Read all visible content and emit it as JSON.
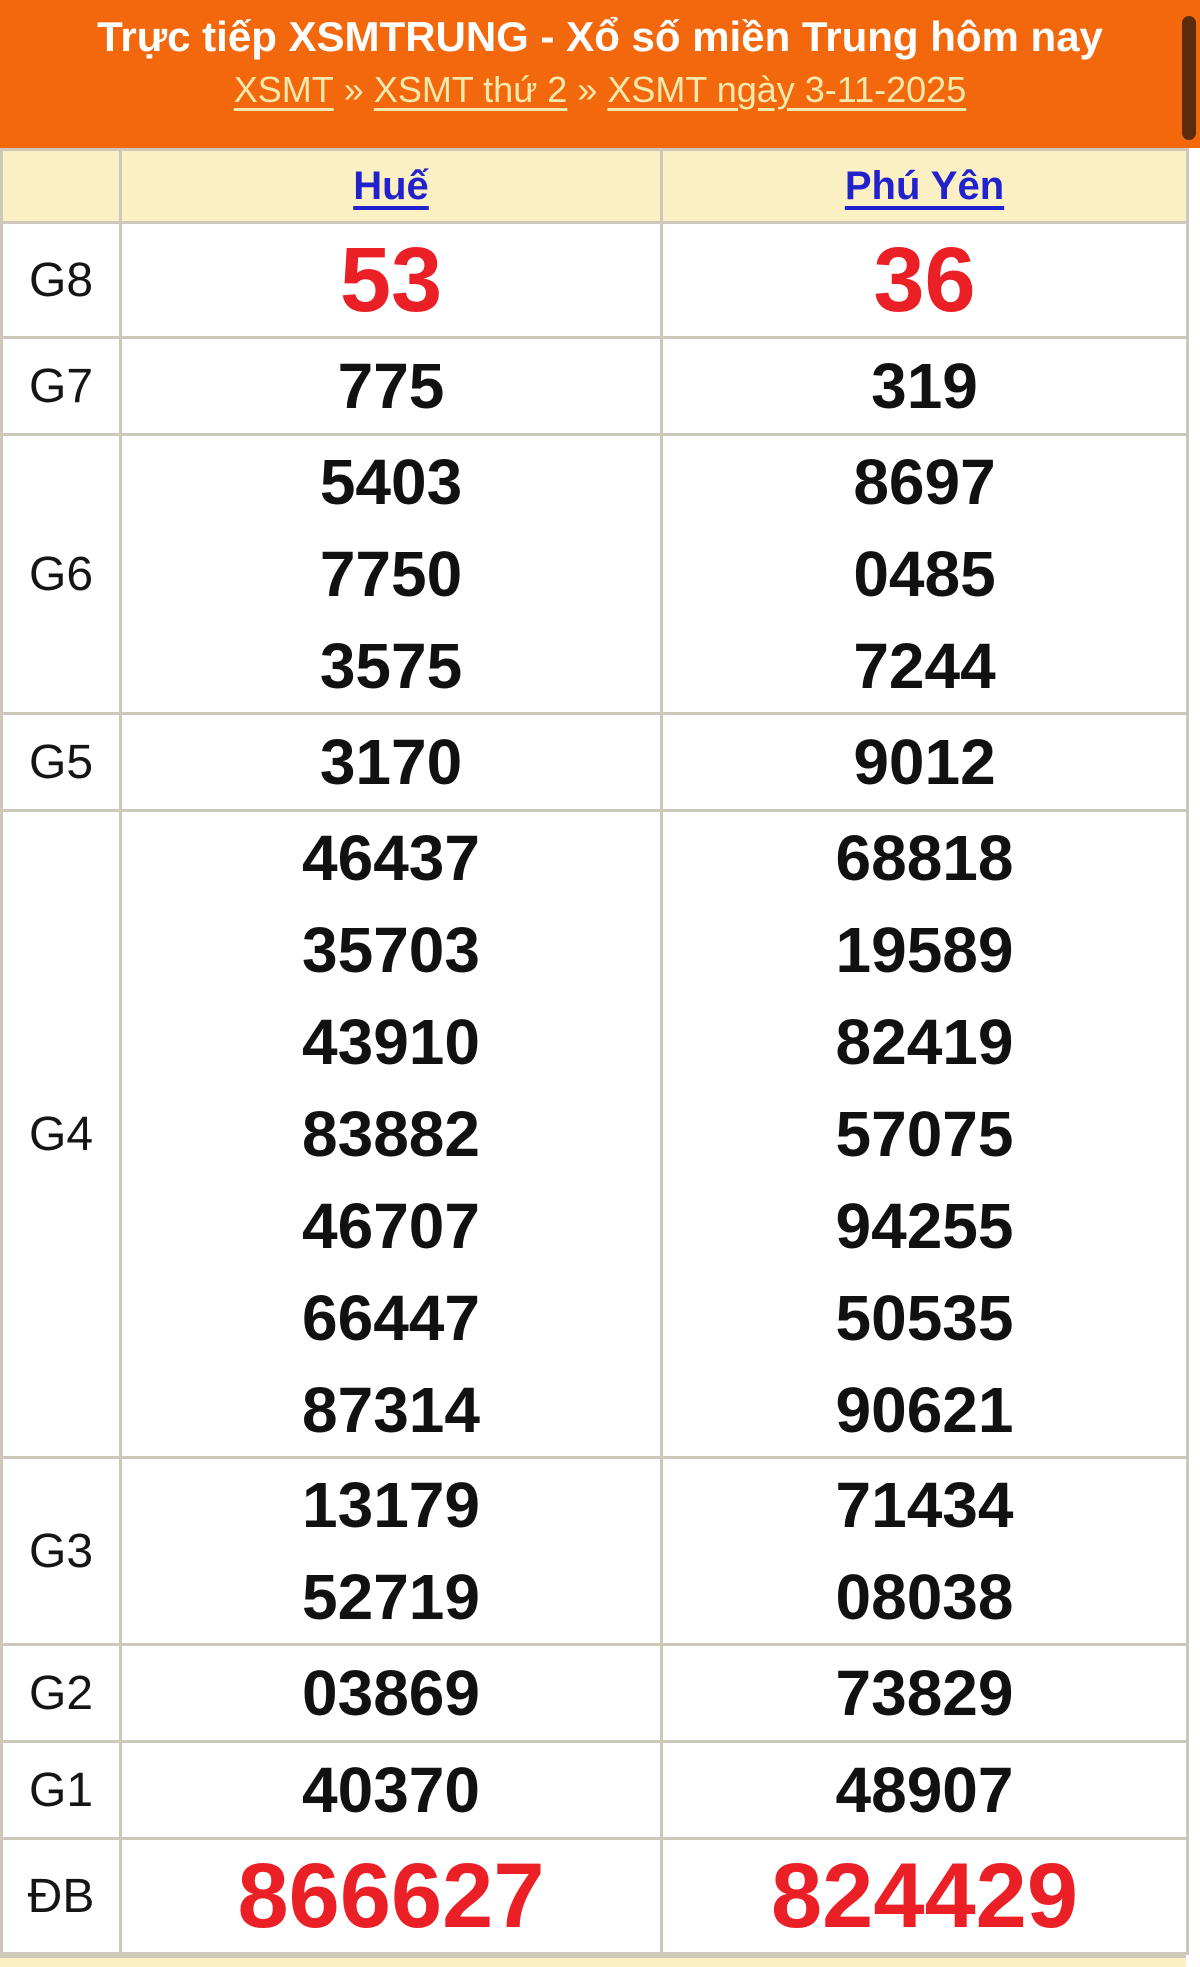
{
  "header": {
    "title": "Trực tiếp XSMTRUNG - Xổ số miền Trung hôm nay",
    "breadcrumb": [
      {
        "label": "XSMT"
      },
      {
        "label": "XSMT thứ 2"
      },
      {
        "label": "XSMT ngày 3-11-2025"
      }
    ],
    "separator": "»"
  },
  "table": {
    "columns": [
      {
        "label": "Huế"
      },
      {
        "label": "Phú Yên"
      }
    ],
    "rows": [
      {
        "prize": "G8",
        "highlight": true,
        "hue": [
          "53"
        ],
        "phuyen": [
          "36"
        ]
      },
      {
        "prize": "G7",
        "highlight": false,
        "hue": [
          "775"
        ],
        "phuyen": [
          "319"
        ]
      },
      {
        "prize": "G6",
        "highlight": false,
        "hue": [
          "5403",
          "7750",
          "3575"
        ],
        "phuyen": [
          "8697",
          "0485",
          "7244"
        ]
      },
      {
        "prize": "G5",
        "highlight": false,
        "hue": [
          "3170"
        ],
        "phuyen": [
          "9012"
        ]
      },
      {
        "prize": "G4",
        "highlight": false,
        "hue": [
          "46437",
          "35703",
          "43910",
          "83882",
          "46707",
          "66447",
          "87314"
        ],
        "phuyen": [
          "68818",
          "19589",
          "82419",
          "57075",
          "94255",
          "50535",
          "90621"
        ]
      },
      {
        "prize": "G3",
        "highlight": false,
        "hue": [
          "13179",
          "52719"
        ],
        "phuyen": [
          "71434",
          "08038"
        ]
      },
      {
        "prize": "G2",
        "highlight": false,
        "hue": [
          "03869"
        ],
        "phuyen": [
          "73829"
        ]
      },
      {
        "prize": "G1",
        "highlight": false,
        "hue": [
          "40370"
        ],
        "phuyen": [
          "48907"
        ]
      },
      {
        "prize": "ĐB",
        "highlight": true,
        "hue": [
          "866627"
        ],
        "phuyen": [
          "824429"
        ]
      }
    ]
  },
  "colors": {
    "header_background": "#F3680C",
    "header_title_text": "#FFFFFF",
    "breadcrumb_text": "#F2E9AC",
    "table_header_background": "#FAF0C4",
    "link_blue": "#2222CC",
    "highlight_red": "#EB2027",
    "number_black": "#111111",
    "border_gray": "#CEC8BB",
    "scrollbar_thumb": "#5B2B0B"
  }
}
